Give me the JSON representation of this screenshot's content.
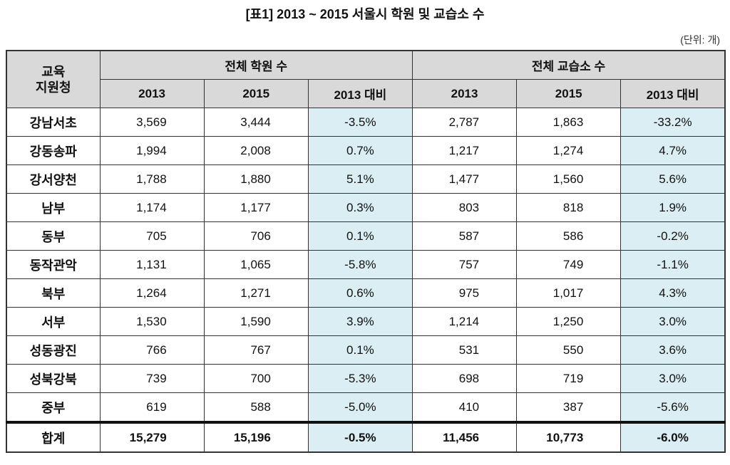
{
  "title": "[표1] 2013 ~ 2015 서울시 학원 및 교습소 수",
  "unit": "(단위: 개)",
  "header": {
    "row_label": "교육 지원청",
    "group1": "전체 학원 수",
    "group2": "전체 교습소 수",
    "sub": [
      "2013",
      "2015",
      "2013 대비",
      "2013",
      "2015",
      "2013 대비"
    ]
  },
  "colors": {
    "header_bg": "#d9d9d9",
    "pct_bg": "#daeef3"
  },
  "rows": [
    {
      "name": "강남서초",
      "v": [
        "3,569",
        "3,444",
        "-3.5%",
        "2,787",
        "1,863",
        "-33.2%"
      ]
    },
    {
      "name": "강동송파",
      "v": [
        "1,994",
        "2,008",
        "0.7%",
        "1,217",
        "1,274",
        "4.7%"
      ]
    },
    {
      "name": "강서양천",
      "v": [
        "1,788",
        "1,880",
        "5.1%",
        "1,477",
        "1,560",
        "5.6%"
      ]
    },
    {
      "name": "남부",
      "v": [
        "1,174",
        "1,177",
        "0.3%",
        "803",
        "818",
        "1.9%"
      ]
    },
    {
      "name": "동부",
      "v": [
        "705",
        "706",
        "0.1%",
        "587",
        "586",
        "-0.2%"
      ]
    },
    {
      "name": "동작관악",
      "v": [
        "1,131",
        "1,065",
        "-5.8%",
        "757",
        "749",
        "-1.1%"
      ]
    },
    {
      "name": "북부",
      "v": [
        "1,264",
        "1,271",
        "0.6%",
        "975",
        "1,017",
        "4.3%"
      ]
    },
    {
      "name": "서부",
      "v": [
        "1,530",
        "1,590",
        "3.9%",
        "1,214",
        "1,250",
        "3.0%"
      ]
    },
    {
      "name": "성동광진",
      "v": [
        "766",
        "767",
        "0.1%",
        "531",
        "550",
        "3.6%"
      ]
    },
    {
      "name": "성북강북",
      "v": [
        "739",
        "700",
        "-5.3%",
        "698",
        "719",
        "3.0%"
      ]
    },
    {
      "name": "중부",
      "v": [
        "619",
        "588",
        "-5.0%",
        "410",
        "387",
        "-5.6%"
      ]
    }
  ],
  "total": {
    "name": "합계",
    "v": [
      "15,279",
      "15,196",
      "-0.5%",
      "11,456",
      "10,773",
      "-6.0%"
    ]
  }
}
